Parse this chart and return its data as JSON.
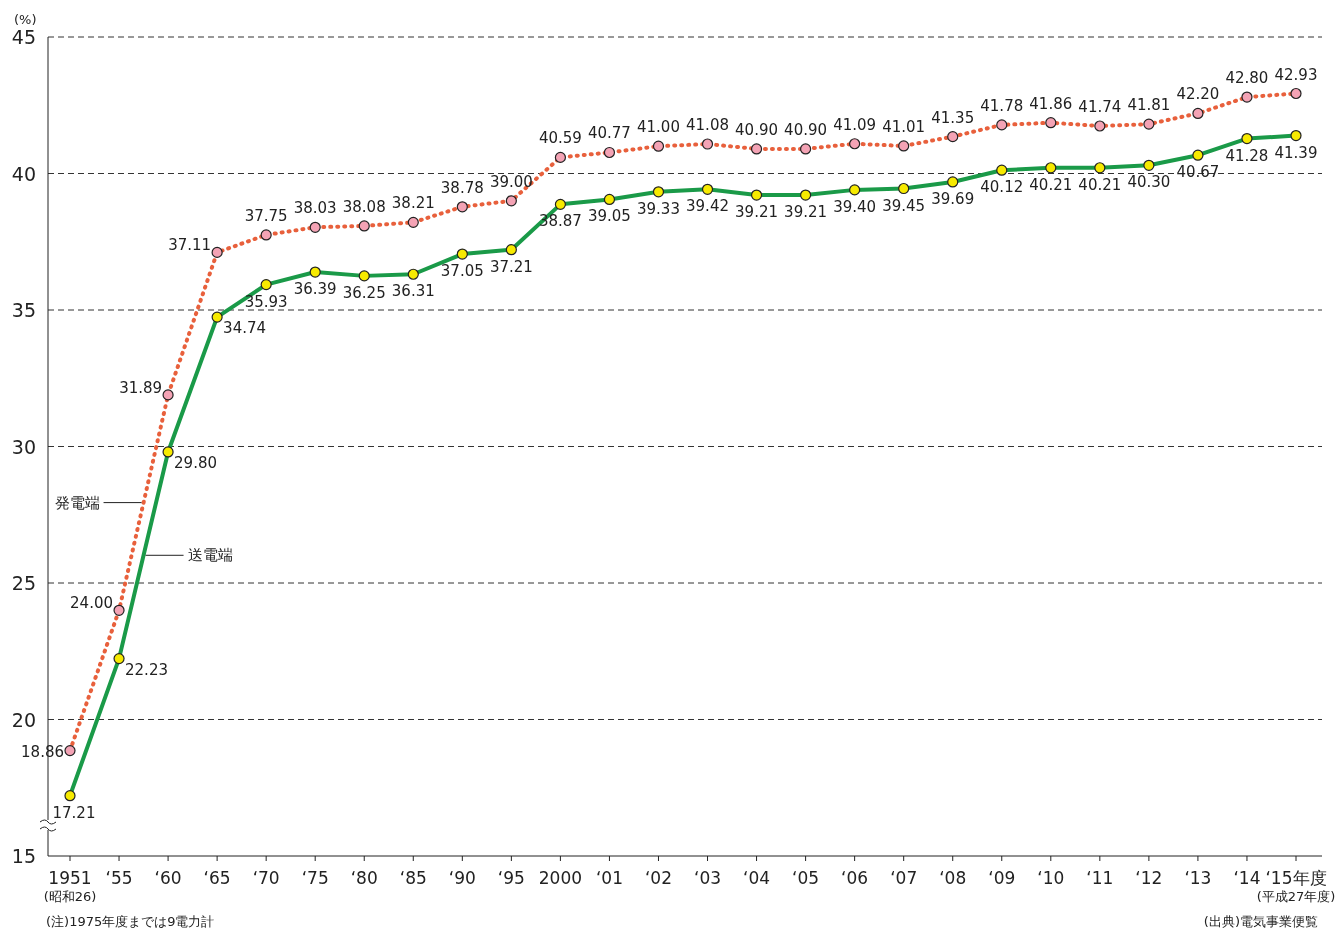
{
  "chart_data": {
    "type": "line",
    "ylabel": "(%)",
    "categories": [
      "1951",
      "‘55",
      "‘60",
      "‘65",
      "‘70",
      "‘75",
      "‘80",
      "‘85",
      "‘90",
      "‘95",
      "2000",
      "‘01",
      "‘02",
      "‘03",
      "‘04",
      "‘05",
      "‘06",
      "‘07",
      "‘08",
      "‘09",
      "‘10",
      "‘11",
      "‘12",
      "‘13",
      "‘14",
      "‘15年度"
    ],
    "series": [
      {
        "name": "発電端",
        "color": "#e8603c",
        "line_style": "dotted",
        "values": [
          18.86,
          24.0,
          31.89,
          37.11,
          37.75,
          38.03,
          38.08,
          38.21,
          38.78,
          39.0,
          40.59,
          40.77,
          41.0,
          41.08,
          40.9,
          40.9,
          41.09,
          41.01,
          41.35,
          41.78,
          41.86,
          41.74,
          41.81,
          42.2,
          42.8,
          42.93
        ],
        "value_labels": [
          "18.86",
          "24.00",
          "31.89",
          "37.11",
          "37.75",
          "38.03",
          "38.08",
          "38.21",
          "38.78",
          "39.00",
          "40.59",
          "40.77",
          "41.00",
          "41.08",
          "40.90",
          "40.90",
          "41.09",
          "41.01",
          "41.35",
          "41.78",
          "41.86",
          "41.74",
          "41.81",
          "42.20",
          "42.80",
          "42.93"
        ]
      },
      {
        "name": "送電端",
        "color": "#1a9a48",
        "line_style": "solid",
        "values": [
          17.21,
          22.23,
          29.8,
          34.74,
          35.93,
          36.39,
          36.25,
          36.31,
          37.05,
          37.21,
          38.87,
          39.05,
          39.33,
          39.42,
          39.21,
          39.21,
          39.4,
          39.45,
          39.69,
          40.12,
          40.21,
          40.21,
          40.3,
          40.67,
          41.28,
          41.39
        ],
        "value_labels": [
          "17.21",
          "22.23",
          "29.80",
          "34.74",
          "35.93",
          "36.39",
          "36.25",
          "36.31",
          "37.05",
          "37.21",
          "38.87",
          "39.05",
          "39.33",
          "39.42",
          "39.21",
          "39.21",
          "39.40",
          "39.45",
          "39.69",
          "40.12",
          "40.21",
          "40.21",
          "40.30",
          "40.67",
          "41.28",
          "41.39"
        ]
      }
    ],
    "ylim": [
      15,
      45
    ],
    "yticks": [
      15,
      20,
      25,
      30,
      35,
      40,
      45
    ],
    "grid": "y",
    "marker": "circle",
    "annotations": [
      "(昭和26)",
      "(平成27年度)",
      "(注)1975年度までは9電力計",
      "(出典)電気事業便覧"
    ]
  }
}
